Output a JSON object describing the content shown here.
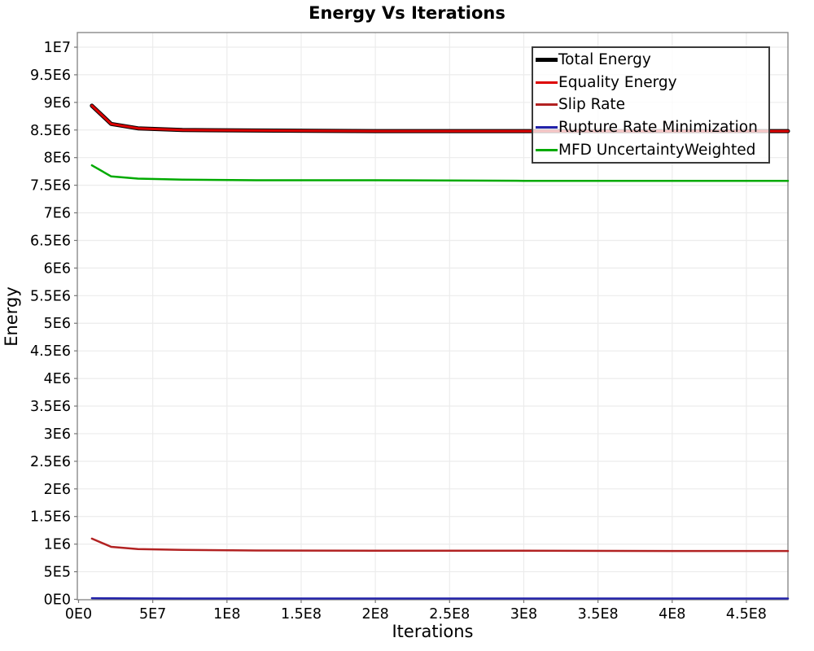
{
  "title": "Energy Vs Iterations",
  "chart_data": {
    "type": "line",
    "title": "Energy Vs Iterations",
    "xlabel": "Iterations",
    "ylabel": "Energy",
    "xlim": [
      0,
      478000000
    ],
    "ylim": [
      0,
      10265000
    ],
    "grid": true,
    "legend_position": "top-right-inside",
    "x_ticks": {
      "values": [
        0,
        50000000,
        100000000,
        150000000,
        200000000,
        250000000,
        300000000,
        350000000,
        400000000,
        450000000
      ],
      "labels": [
        "0E0",
        "5E7",
        "1E8",
        "1.5E8",
        "2E8",
        "2.5E8",
        "3E8",
        "3.5E8",
        "4E8",
        "4.5E8"
      ]
    },
    "y_ticks": {
      "values": [
        0,
        500000,
        1000000,
        1500000,
        2000000,
        2500000,
        3000000,
        3500000,
        4000000,
        4500000,
        5000000,
        5500000,
        6000000,
        6500000,
        7000000,
        7500000,
        8000000,
        8500000,
        9000000,
        9500000,
        10000000
      ],
      "labels": [
        "0E0",
        "5E5",
        "1E6",
        "1.5E6",
        "2E6",
        "2.5E6",
        "3E6",
        "3.5E6",
        "4E6",
        "4.5E6",
        "5E6",
        "5.5E6",
        "6E6",
        "6.5E6",
        "7E6",
        "7.5E6",
        "8E6",
        "8.5E6",
        "9E6",
        "9.5E6",
        "1E7"
      ]
    },
    "x": [
      9000000,
      22000000,
      40000000,
      70000000,
      120000000,
      200000000,
      300000000,
      400000000,
      478000000
    ],
    "series": [
      {
        "name": "Total Energy",
        "color": "#000000",
        "width": 5,
        "values": [
          8940000,
          8610000,
          8530000,
          8500000,
          8490000,
          8480000,
          8480000,
          8480000,
          8480000
        ]
      },
      {
        "name": "Equality Energy",
        "color": "#dd0000",
        "width": 3,
        "values": [
          8940000,
          8610000,
          8530000,
          8500000,
          8490000,
          8480000,
          8480000,
          8480000,
          8480000
        ]
      },
      {
        "name": "Slip Rate",
        "color": "#b22222",
        "width": 2.5,
        "values": [
          1100000,
          950000,
          910000,
          895000,
          885000,
          880000,
          880000,
          875000,
          875000
        ]
      },
      {
        "name": "Rupture Rate Minimization",
        "color": "#2222aa",
        "width": 2.5,
        "values": [
          20000,
          18000,
          16000,
          15000,
          15000,
          15000,
          15000,
          15000,
          15000
        ]
      },
      {
        "name": "MFD UncertaintyWeighted",
        "color": "#00aa00",
        "width": 2.5,
        "values": [
          7860000,
          7660000,
          7620000,
          7600000,
          7590000,
          7590000,
          7580000,
          7580000,
          7580000
        ]
      }
    ]
  }
}
